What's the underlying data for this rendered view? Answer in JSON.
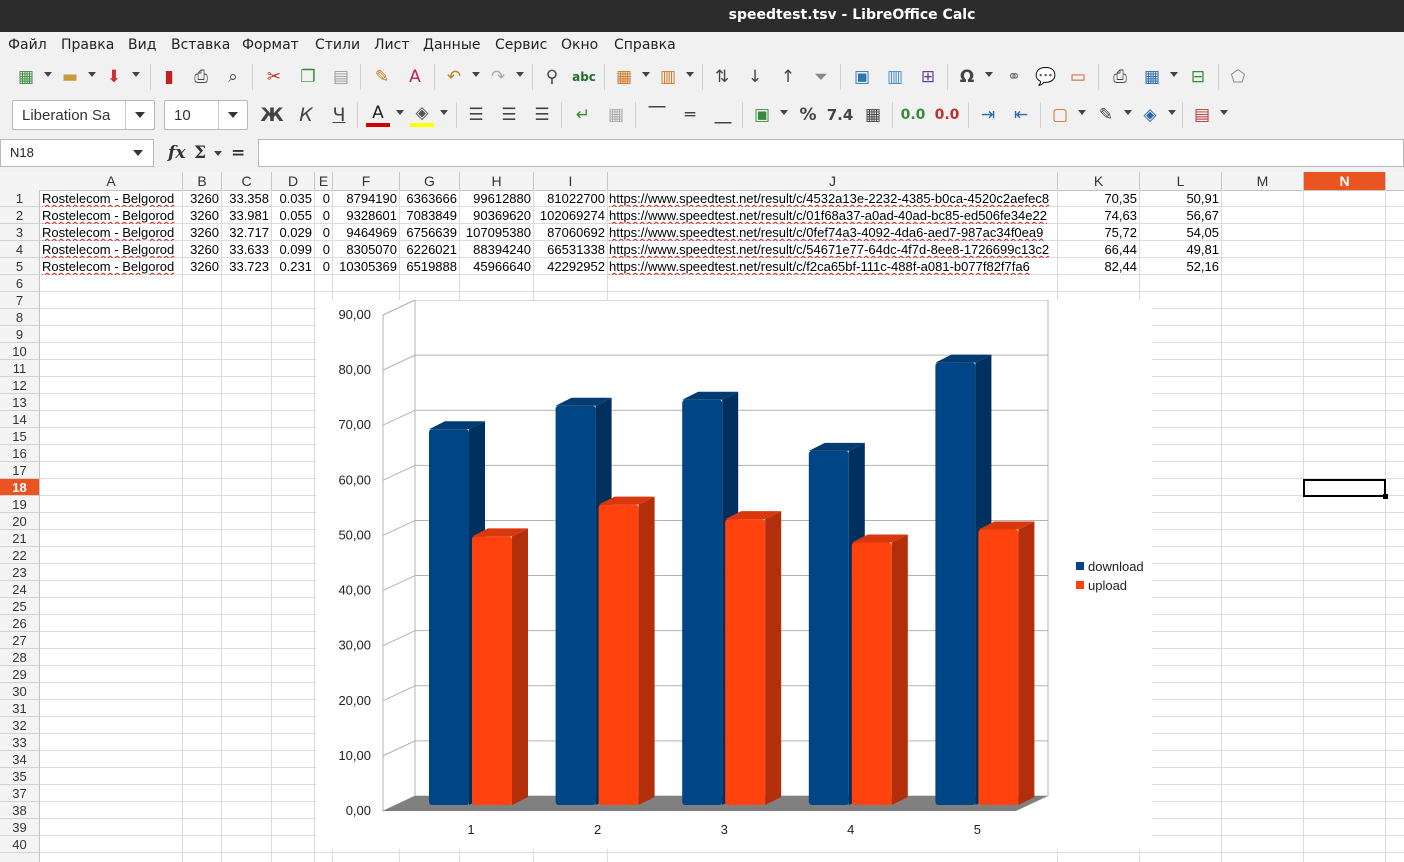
{
  "window": {
    "title": "speedtest.tsv - LibreOffice Calc"
  },
  "menu": [
    "Файл",
    "Правка",
    "Вид",
    "Вставка",
    "Формат",
    "Стили",
    "Лист",
    "Данные",
    "Сервис",
    "Окно",
    "Справка"
  ],
  "toolbar": {
    "font_name": "Liberation Sa",
    "font_size": "10"
  },
  "formula_bar": {
    "name_box": "N18",
    "fx": "fx",
    "sigma": "Σ",
    "equals": "=",
    "formula": ""
  },
  "columns": [
    "A",
    "B",
    "C",
    "D",
    "E",
    "F",
    "G",
    "H",
    "I",
    "J",
    "K",
    "L",
    "M",
    "N"
  ],
  "active_column": "N",
  "active_row": "18",
  "rows": [
    "1",
    "2",
    "3",
    "4",
    "5",
    "6",
    "7",
    "8",
    "9",
    "10",
    "11",
    "12",
    "13",
    "14",
    "15",
    "16",
    "17",
    "18",
    "19",
    "20",
    "21",
    "22",
    "23",
    "24",
    "25",
    "26",
    "27",
    "28",
    "29",
    "30",
    "31",
    "32",
    "33",
    "34",
    "35",
    "37",
    "38",
    "39",
    "40"
  ],
  "sheet": [
    [
      "Rostelecom - Belgorod",
      "3260",
      "33.358",
      "0.035",
      "0",
      "8794190",
      "6363666",
      "99612880",
      "81022700",
      "https://www.speedtest.net/result/c/4532a13e-2232-4385-b0ca-4520c2aefec8",
      "70,35",
      "50,91"
    ],
    [
      "Rostelecom - Belgorod",
      "3260",
      "33.981",
      "0.055",
      "0",
      "9328601",
      "7083849",
      "90369620",
      "102069274",
      "https://www.speedtest.net/result/c/01f68a37-a0ad-40ad-bc85-ed506fe34e22",
      "74,63",
      "56,67"
    ],
    [
      "Rostelecom - Belgorod",
      "3260",
      "32.717",
      "0.029",
      "0",
      "9464969",
      "6756639",
      "107095380",
      "87060692",
      "https://www.speedtest.net/result/c/0fef74a3-4092-4da6-aed7-987ac34f0ea9",
      "75,72",
      "54,05"
    ],
    [
      "Rostelecom - Belgorod",
      "3260",
      "33.633",
      "0.099",
      "0",
      "8305070",
      "6226021",
      "88394240",
      "66531338",
      "https://www.speedtest.net/result/c/54671e77-64dc-4f7d-8ee8-1726699c13c2",
      "66,44",
      "49,81"
    ],
    [
      "Rostelecom - Belgorod",
      "3260",
      "33.723",
      "0.231",
      "0",
      "10305369",
      "6519888",
      "45966640",
      "42292952",
      "https://www.speedtest.net/result/c/f2ca65bf-111c-488f-a081-b077f82f7fa6",
      "82,44",
      "52,16"
    ]
  ],
  "chart_data": {
    "type": "bar",
    "categories": [
      "1",
      "2",
      "3",
      "4",
      "5"
    ],
    "series": [
      {
        "name": "download",
        "values": [
          70.35,
          74.63,
          75.72,
          66.44,
          82.44
        ],
        "color": "#004586"
      },
      {
        "name": "upload",
        "values": [
          50.91,
          56.67,
          54.05,
          49.81,
          52.16
        ],
        "color": "#ff420e"
      }
    ],
    "y_ticks": [
      "0,00",
      "10,00",
      "20,00",
      "30,00",
      "40,00",
      "50,00",
      "60,00",
      "70,00",
      "80,00",
      "90,00"
    ],
    "ylim": [
      0,
      90
    ],
    "grid": true,
    "legend": "right",
    "style": "3d"
  }
}
